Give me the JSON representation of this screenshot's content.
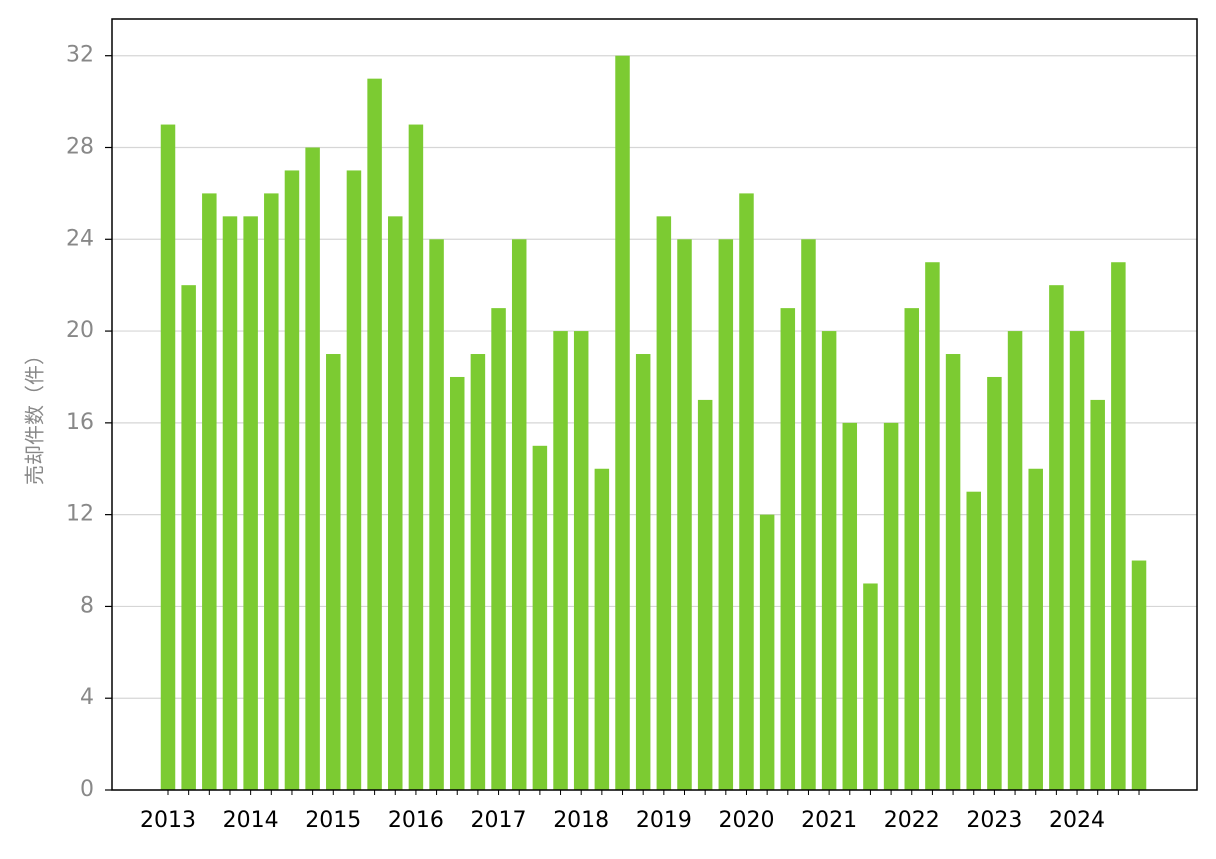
{
  "chart_data": {
    "type": "bar",
    "y_label": "売却件数（件）",
    "categories": [
      "2013",
      null,
      null,
      null,
      "2014",
      null,
      null,
      null,
      "2015",
      null,
      null,
      null,
      "2016",
      null,
      null,
      null,
      "2017",
      null,
      null,
      null,
      "2018",
      null,
      null,
      null,
      "2019",
      null,
      null,
      null,
      "2020",
      null,
      null,
      null,
      "2021",
      null,
      null,
      null,
      "2022",
      null,
      null,
      null,
      "2023",
      null,
      null,
      null,
      "2024",
      null,
      null,
      null
    ],
    "values": [
      29,
      22,
      26,
      25,
      25,
      26,
      27,
      28,
      19,
      27,
      31,
      25,
      29,
      24,
      18,
      19,
      21,
      24,
      15,
      20,
      20,
      14,
      32,
      19,
      25,
      24,
      17,
      24,
      26,
      12,
      21,
      24,
      20,
      16,
      9,
      16,
      21,
      23,
      19,
      13,
      18,
      20,
      14,
      22,
      20,
      17,
      23,
      10
    ],
    "color": "#7ccb32",
    "ylim": [
      0,
      33.6
    ],
    "yticks": [
      0,
      4,
      8,
      12,
      16,
      20,
      24,
      28,
      32
    ],
    "grid": true
  }
}
